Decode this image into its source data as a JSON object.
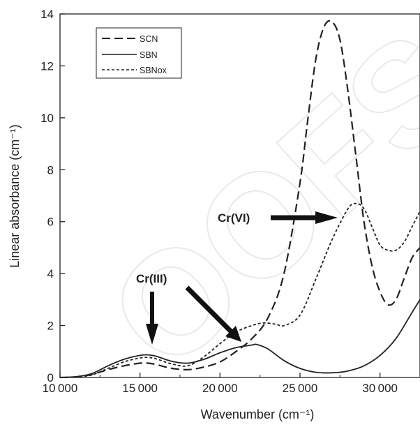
{
  "chart_data": {
    "type": "line",
    "title": "",
    "xlabel": "Wavenumber (cm⁻¹)",
    "ylabel": "Linear absorbance (cm⁻¹)",
    "xlim": [
      10000,
      32500
    ],
    "ylim": [
      0,
      14
    ],
    "xticks": [
      10000,
      15000,
      20000,
      25000,
      30000
    ],
    "xtick_labels": [
      "10 000",
      "15 000",
      "20 000",
      "25 000",
      "30 000"
    ],
    "yticks": [
      0,
      2,
      4,
      6,
      8,
      10,
      12,
      14
    ],
    "ytick_labels": [
      "0",
      "2",
      "4",
      "6",
      "8",
      "10",
      "12",
      "14"
    ],
    "grid": false,
    "legend_position": "top-left",
    "series": [
      {
        "name": "SCN",
        "style": "long-dash",
        "color": "#222222",
        "x": [
          10000,
          11000,
          12000,
          13000,
          14000,
          15000,
          15500,
          16000,
          17000,
          18000,
          19000,
          20000,
          21000,
          22000,
          23000,
          24000,
          25000,
          25500,
          26000,
          26500,
          27000,
          27500,
          28000,
          28500,
          29000,
          29500,
          30000,
          30500,
          31000,
          31500,
          32000,
          32500
        ],
        "y": [
          0.0,
          0.02,
          0.12,
          0.3,
          0.45,
          0.55,
          0.55,
          0.5,
          0.35,
          0.3,
          0.4,
          0.6,
          1.0,
          1.5,
          2.3,
          4.0,
          7.5,
          10.0,
          12.3,
          13.5,
          13.7,
          13.0,
          11.0,
          8.5,
          6.0,
          4.3,
          3.3,
          2.8,
          3.0,
          3.8,
          4.6,
          5.0
        ]
      },
      {
        "name": "SBN",
        "style": "solid",
        "color": "#222222",
        "x": [
          10000,
          11000,
          12000,
          13000,
          14000,
          15000,
          15500,
          16000,
          17000,
          18000,
          19000,
          20000,
          21000,
          22000,
          22300,
          23000,
          24000,
          25000,
          26000,
          27000,
          28000,
          29000,
          30000,
          31000,
          32000,
          32500
        ],
        "y": [
          0.0,
          0.03,
          0.15,
          0.45,
          0.7,
          0.85,
          0.87,
          0.82,
          0.62,
          0.55,
          0.7,
          0.95,
          1.15,
          1.25,
          1.27,
          1.1,
          0.65,
          0.35,
          0.2,
          0.18,
          0.25,
          0.45,
          0.85,
          1.5,
          2.5,
          3.0
        ]
      },
      {
        "name": "SBNox",
        "style": "short-dash",
        "color": "#222222",
        "x": [
          10000,
          11000,
          12000,
          13000,
          14000,
          15000,
          15500,
          16000,
          17000,
          18000,
          19000,
          20000,
          21000,
          22000,
          22700,
          23500,
          24000,
          25000,
          26000,
          27000,
          28000,
          28500,
          29000,
          29500,
          30000,
          30500,
          31000,
          31500,
          32000,
          32500
        ],
        "y": [
          0.0,
          0.02,
          0.1,
          0.35,
          0.6,
          0.75,
          0.77,
          0.72,
          0.52,
          0.45,
          0.8,
          1.3,
          1.75,
          2.0,
          2.1,
          2.05,
          2.0,
          2.4,
          3.8,
          5.3,
          6.5,
          6.7,
          6.5,
          5.8,
          5.1,
          4.9,
          4.9,
          5.2,
          5.8,
          6.4
        ]
      }
    ],
    "annotations": [
      {
        "text": "Cr(VI)"
      },
      {
        "text": "Cr(III)"
      }
    ],
    "watermark": "OOFS"
  }
}
